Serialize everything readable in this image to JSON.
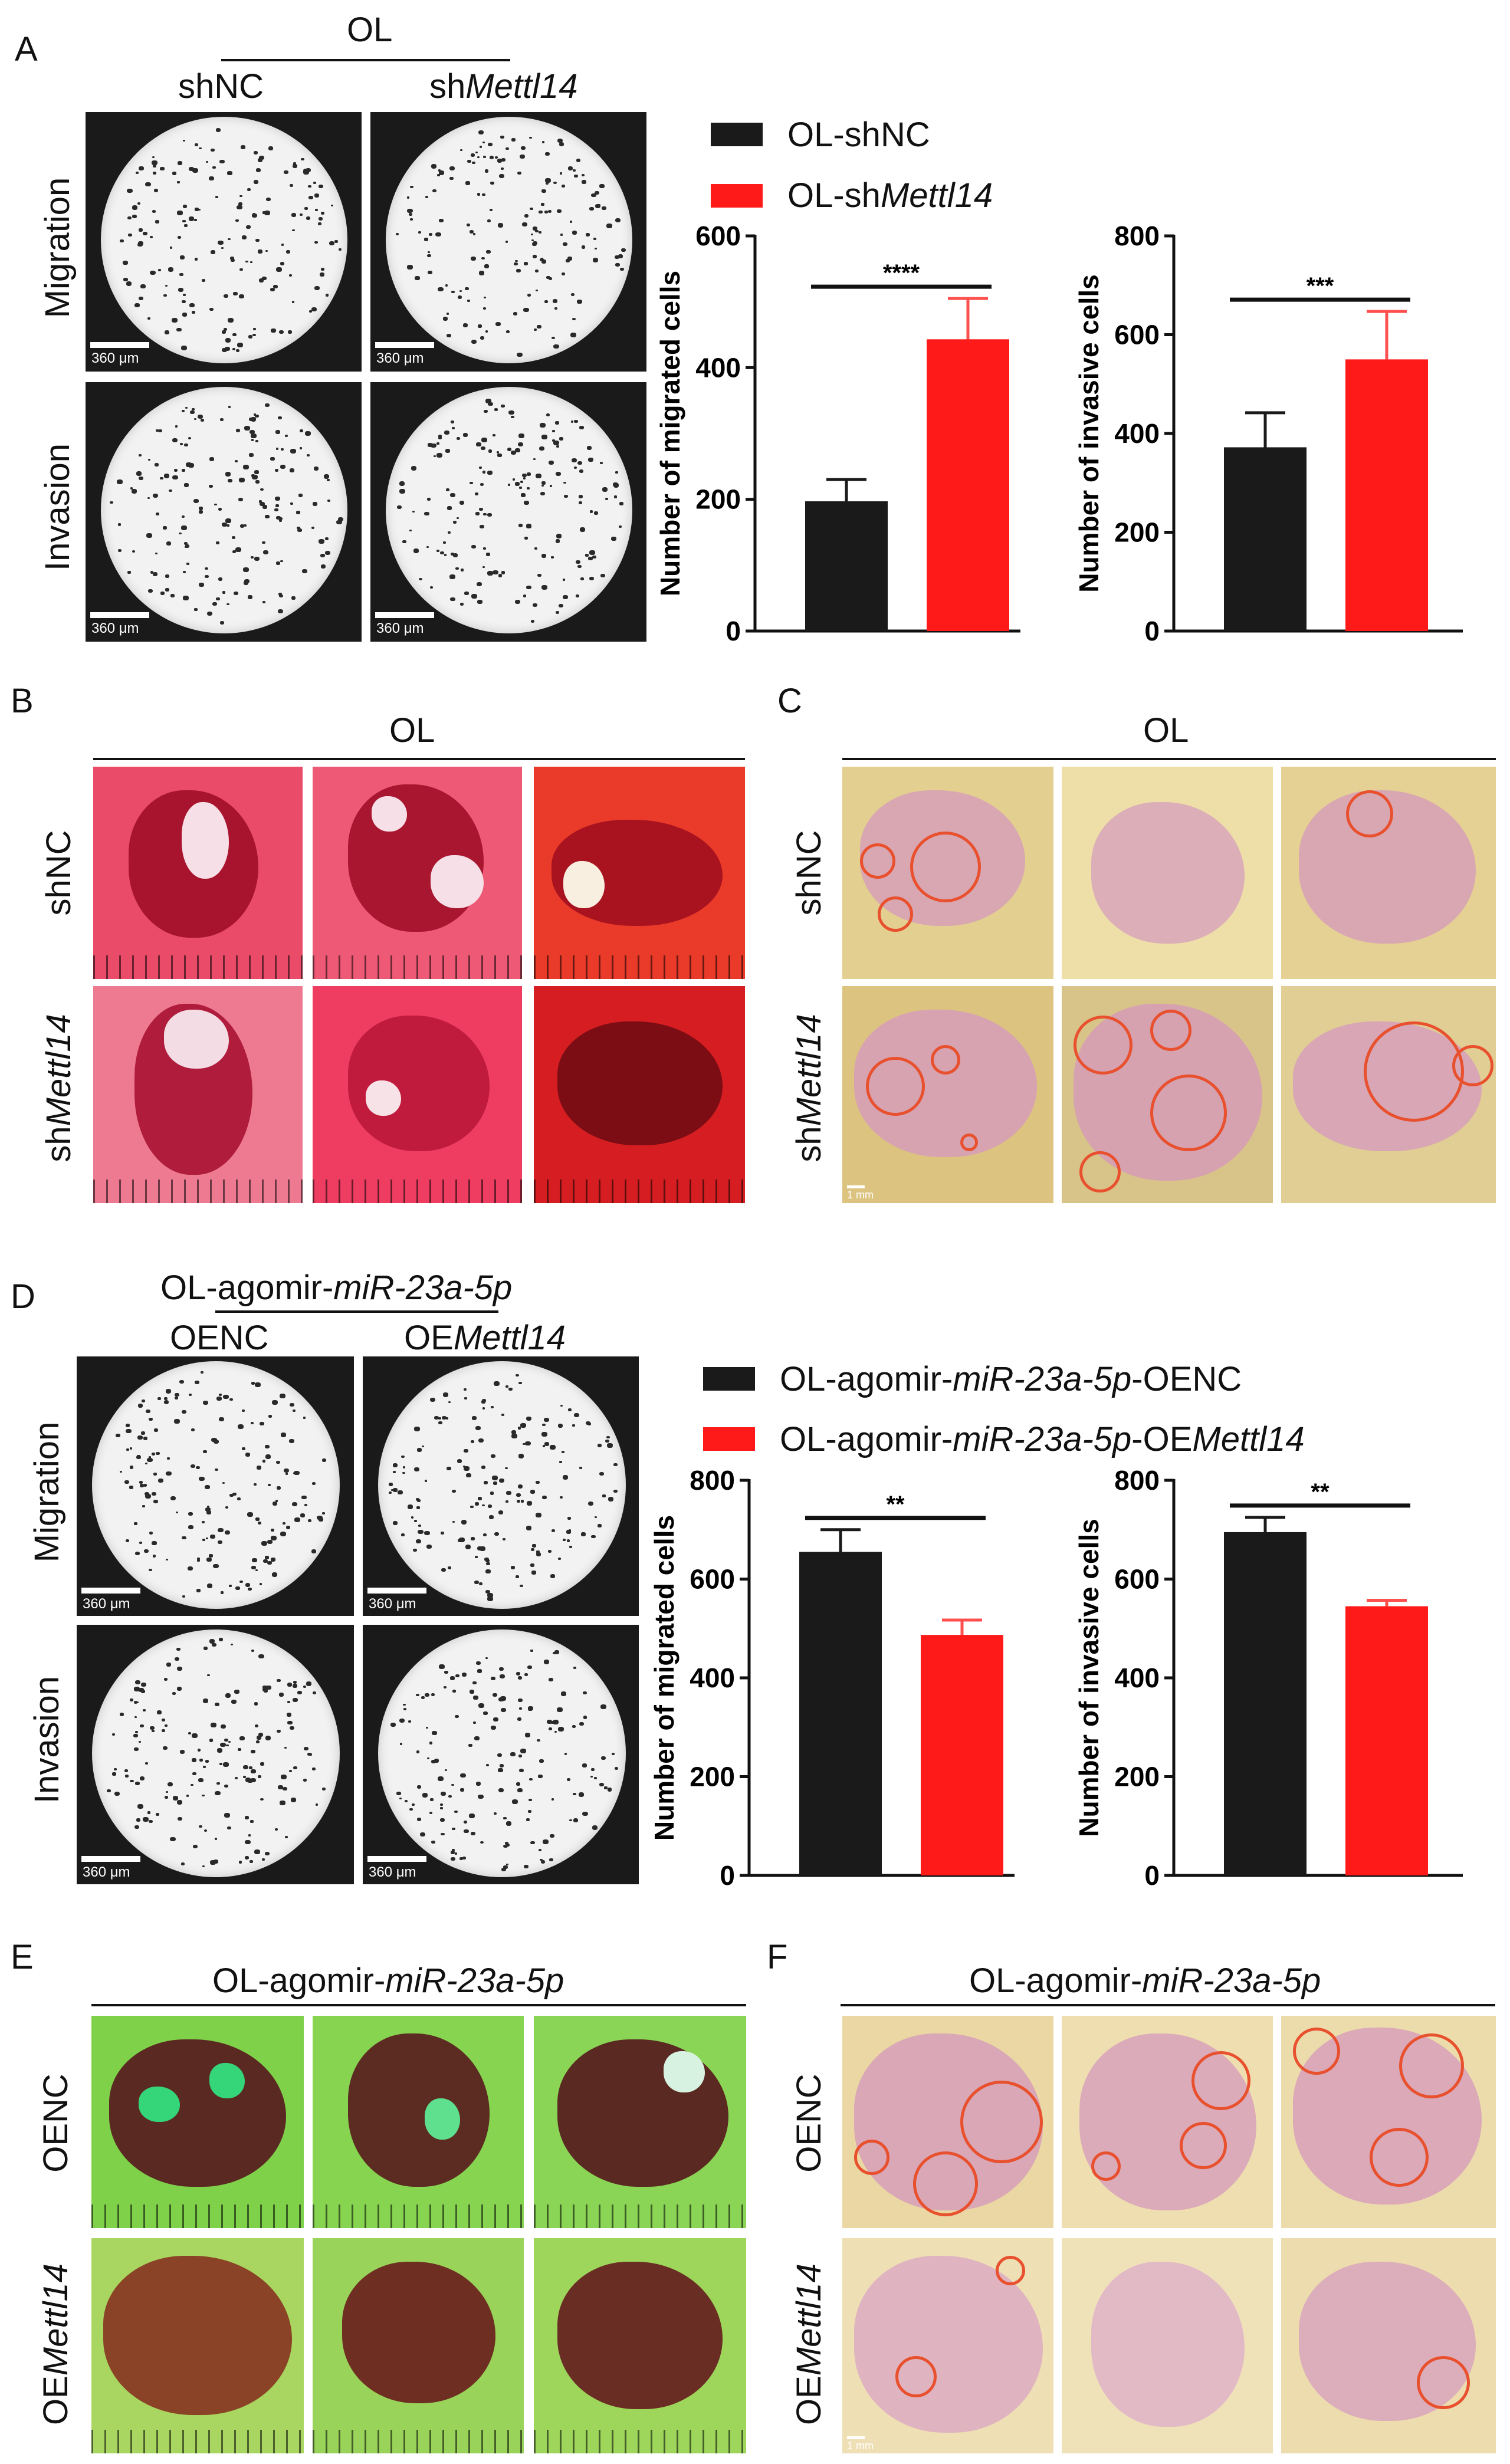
{
  "colors": {
    "black": "#1b1a1a",
    "red": "#ff1a1a",
    "err_red": "#ff5050"
  },
  "panels": {
    "A": {
      "letter": "A",
      "group": "OL",
      "col1": "shNC",
      "col2_prefix": "sh",
      "col2_italic": "Mettl14",
      "row1": "Migration",
      "row2": "Invasion",
      "scale": "360 μm"
    },
    "B": {
      "letter": "B",
      "group": "OL",
      "row1": "shNC",
      "row2_prefix": "sh",
      "row2_italic": "Mettl14"
    },
    "C": {
      "letter": "C",
      "group": "OL",
      "row1": "shNC",
      "row2_prefix": "sh",
      "row2_italic": "Mettl14",
      "scale": "1 mm"
    },
    "D": {
      "letter": "D",
      "group_prefix": "OL-agomir-",
      "group_italic": "miR-23a-5p",
      "col1": "OENC",
      "col2_prefix": "OE",
      "col2_italic": "Mettl14",
      "row1": "Migration",
      "row2": "Invasion",
      "scale": "360 μm"
    },
    "E": {
      "letter": "E",
      "group_prefix": "OL-agomir-",
      "group_italic": "miR-23a-5p",
      "row1": "OENC",
      "row2_prefix": "OE",
      "row2_italic": "Mettl14"
    },
    "F": {
      "letter": "F",
      "group_prefix": "OL-agomir-",
      "group_italic": "miR-23a-5p",
      "row1": "OENC",
      "row2_prefix": "OE",
      "row2_italic": "Mettl14",
      "scale": "1 mm"
    }
  },
  "legends": {
    "A": {
      "item1": "OL-shNC",
      "item2_prefix": "OL-sh",
      "item2_italic": "Mettl14"
    },
    "D": {
      "item1_prefix": "OL-agomir-",
      "item1_italic": "miR-23a-5p",
      "item1_suffix": "-OENC",
      "item2_prefix": "OL-agomir-",
      "item2_italic": "miR-23a-5p",
      "item2_suffix": "-OEMettl14",
      "item2_suffix_prefix": "-OE",
      "item2_suffix_italic": "Mettl14"
    }
  },
  "chart_data": [
    {
      "id": "A-migration",
      "type": "bar",
      "ylabel": "Number of migrated cells",
      "ylim": [
        0,
        600
      ],
      "yticks": [
        0,
        200,
        400,
        600
      ],
      "categories": [
        "OL-shNC",
        "OL-shMettl14"
      ],
      "values": [
        197,
        443
      ],
      "errors": [
        33,
        62
      ],
      "significance": "****"
    },
    {
      "id": "A-invasion",
      "type": "bar",
      "ylabel": "Number of invasive cells",
      "ylim": [
        0,
        800
      ],
      "yticks": [
        0,
        200,
        400,
        600,
        800
      ],
      "categories": [
        "OL-shNC",
        "OL-shMettl14"
      ],
      "values": [
        372,
        550
      ],
      "errors": [
        70,
        97
      ],
      "significance": "***"
    },
    {
      "id": "D-migration",
      "type": "bar",
      "ylabel": "Number of migrated cells",
      "ylim": [
        0,
        800
      ],
      "yticks": [
        0,
        200,
        400,
        600,
        800
      ],
      "categories": [
        "OL-agomir-miR-23a-5p-OENC",
        "OL-agomir-miR-23a-5p-OEMettl14"
      ],
      "values": [
        655,
        487
      ],
      "errors": [
        45,
        30
      ],
      "significance": "**"
    },
    {
      "id": "D-invasion",
      "type": "bar",
      "ylabel": "Number of invasive cells",
      "ylim": [
        0,
        800
      ],
      "yticks": [
        0,
        200,
        400,
        600,
        800
      ],
      "categories": [
        "OL-agomir-miR-23a-5p-OENC",
        "OL-agomir-miR-23a-5p-OEMettl14"
      ],
      "values": [
        695,
        545
      ],
      "errors": [
        30,
        12
      ],
      "significance": "**"
    }
  ]
}
